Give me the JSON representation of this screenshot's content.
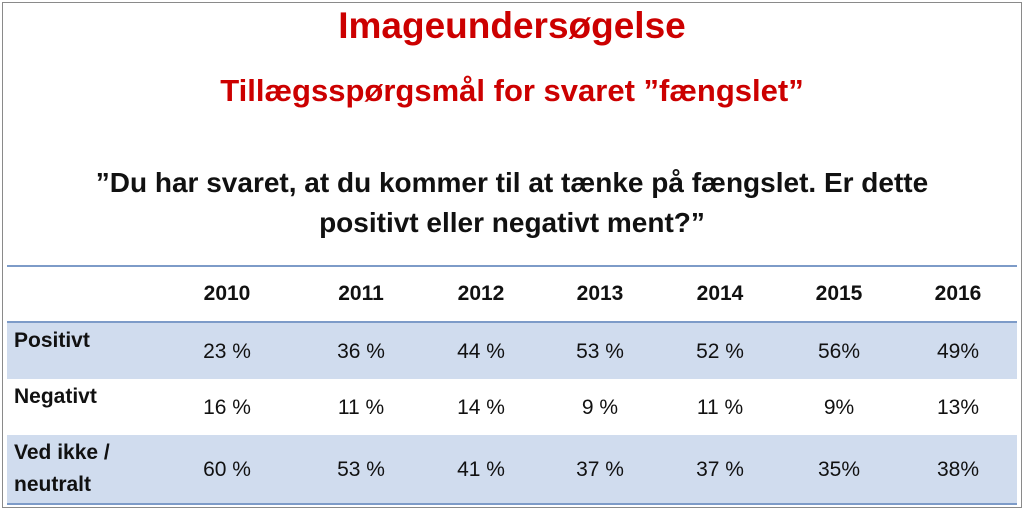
{
  "header": {
    "title": "Imageundersøgelse",
    "subtitle": "Tillægsspørgsmål for svaret ”fængslet”",
    "question_line1": "”Du har svaret, at du kommer til at tænke på fængslet. Er dette",
    "question_line2": "positivt eller negativt ment?”"
  },
  "colors": {
    "title": "#cc0000",
    "band": "#d0dcee",
    "rule": "#7d9bc8"
  },
  "chart_data": {
    "type": "table",
    "columns": [
      "2010",
      "2011",
      "2012",
      "2013",
      "2014",
      "2015",
      "2016"
    ],
    "rows": [
      {
        "label_lines": [
          "Positivt"
        ],
        "cells": [
          "23 %",
          "36 %",
          "44 %",
          "53 %",
          "52 %",
          "56%",
          "49%"
        ],
        "values": [
          23,
          36,
          44,
          53,
          52,
          56,
          49
        ]
      },
      {
        "label_lines": [
          "Negativt"
        ],
        "cells": [
          "16 %",
          "11 %",
          "14 %",
          "9 %",
          "11 %",
          "9%",
          "13%"
        ],
        "values": [
          16,
          11,
          14,
          9,
          11,
          9,
          13
        ]
      },
      {
        "label_lines": [
          "Ved ikke /",
          "neutralt"
        ],
        "cells": [
          "60 %",
          "53 %",
          "41 %",
          "37 %",
          "37 %",
          "35%",
          "38%"
        ],
        "values": [
          60,
          53,
          41,
          37,
          37,
          35,
          38
        ]
      }
    ]
  }
}
